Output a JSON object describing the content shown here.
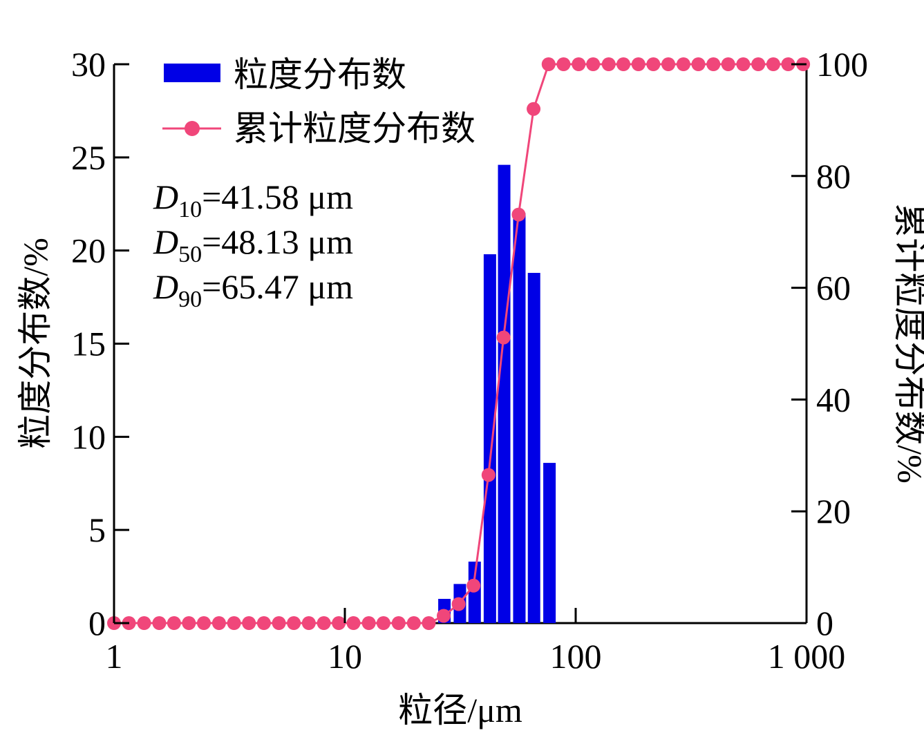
{
  "chart_data": {
    "type": "bar+line",
    "xscale": "log",
    "xlim": [
      1,
      1000
    ],
    "xticks": [
      1,
      10,
      100,
      1000
    ],
    "xtick_labels": [
      "1",
      "10",
      "100",
      "1 000"
    ],
    "xlabel": "粒径/μm",
    "ylabel_left": "粒度分布数/%",
    "ylim_left": [
      0,
      30
    ],
    "yticks_left": [
      0,
      5,
      10,
      15,
      20,
      25,
      30
    ],
    "ylabel_right": "累计粒度分布数/%",
    "ylim_right": [
      0,
      100
    ],
    "yticks_right": [
      0,
      20,
      40,
      60,
      80,
      100
    ],
    "legend": [
      "粒度分布数",
      "累计粒度分布数"
    ],
    "legend_position": "top-left",
    "colors": {
      "bars": "#0000e6",
      "line": "#f0467a"
    },
    "annotations": [
      {
        "sym": "D",
        "sub": "10",
        "value": "=41.58 μm"
      },
      {
        "sym": "D",
        "sub": "50",
        "value": "=48.13 μm"
      },
      {
        "sym": "D",
        "sub": "90",
        "value": "=65.47 μm"
      }
    ],
    "series": [
      {
        "name": "粒度分布数",
        "kind": "bar",
        "x": [
          27.0,
          31.5,
          36.5,
          42.5,
          49.0,
          57.0,
          66.0,
          77.0
        ],
        "values": [
          1.3,
          2.1,
          3.3,
          19.8,
          24.6,
          22.0,
          18.8,
          8.6
        ]
      },
      {
        "name": "累计粒度分布数",
        "kind": "line",
        "x": [
          1.0,
          1.16,
          1.35,
          1.57,
          1.82,
          2.11,
          2.45,
          2.85,
          3.31,
          3.84,
          4.46,
          5.18,
          6.01,
          6.98,
          8.11,
          9.41,
          10.9,
          12.7,
          14.7,
          17.1,
          19.9,
          23.1,
          26.8,
          31.1,
          36.1,
          41.9,
          48.7,
          56.6,
          65.7,
          76.3,
          88.6,
          103,
          119,
          139,
          161,
          187,
          217,
          252,
          293,
          340,
          395,
          458,
          532,
          618,
          718,
          833,
          967
        ],
        "values": [
          0,
          0,
          0,
          0,
          0,
          0,
          0,
          0,
          0,
          0,
          0,
          0,
          0,
          0,
          0,
          0,
          0,
          0,
          0,
          0,
          0,
          0,
          1.3,
          3.4,
          6.7,
          26.5,
          51.1,
          73.1,
          92.0,
          100,
          100,
          100,
          100,
          100,
          100,
          100,
          100,
          100,
          100,
          100,
          100,
          100,
          100,
          100,
          100,
          100,
          100
        ]
      }
    ]
  }
}
